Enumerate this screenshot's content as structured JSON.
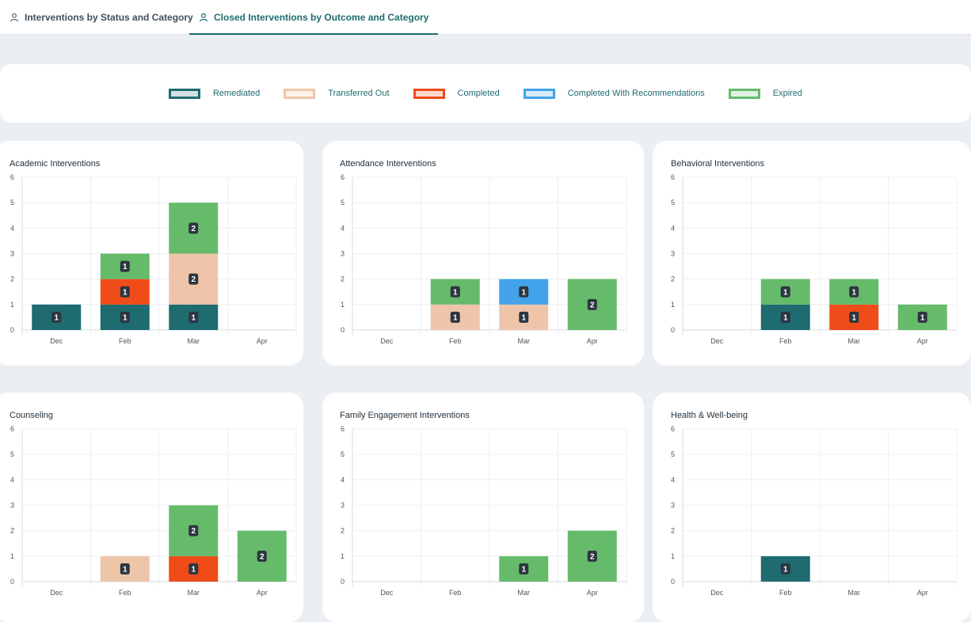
{
  "tabs": [
    {
      "label": "Interventions by Status and Category",
      "active": false
    },
    {
      "label": "Closed Interventions by Outcome and Category",
      "active": true
    }
  ],
  "legend": [
    {
      "label": "Remediated",
      "border": "#1e6b70",
      "fill": "#d2dfe1"
    },
    {
      "label": "Transferred Out",
      "border": "#efc5a9",
      "fill": "#fdf1ea"
    },
    {
      "label": "Completed",
      "border": "#f04c1a",
      "fill": "#fdd8ca"
    },
    {
      "label": "Completed With Recommendations",
      "border": "#42a3eb",
      "fill": "#d7ebfa"
    },
    {
      "label": "Expired",
      "border": "#66bb6a",
      "fill": "#e0f1e1"
    }
  ],
  "chart_data": [
    {
      "type": "bar",
      "stacked": true,
      "title": "Academic Interventions",
      "categories": [
        "Dec",
        "Feb",
        "Mar",
        "Apr"
      ],
      "yticks": [
        "0",
        "1",
        "2",
        "3",
        "4",
        "5",
        "6"
      ],
      "ylim": [
        0,
        6
      ],
      "series": [
        {
          "name": "Remediated",
          "color": "#1e6b70",
          "values": [
            1,
            1,
            1,
            0
          ]
        },
        {
          "name": "Transferred Out",
          "color": "#efc5a9",
          "values": [
            0,
            0,
            2,
            0
          ]
        },
        {
          "name": "Completed",
          "color": "#f04c1a",
          "values": [
            0,
            1,
            0,
            0
          ]
        },
        {
          "name": "Completed With Recommendations",
          "color": "#42a3eb",
          "values": [
            0,
            0,
            0,
            0
          ]
        },
        {
          "name": "Expired",
          "color": "#66bb6a",
          "values": [
            0,
            1,
            2,
            0
          ]
        }
      ]
    },
    {
      "type": "bar",
      "stacked": true,
      "title": "Attendance Interventions",
      "categories": [
        "Dec",
        "Feb",
        "Mar",
        "Apr"
      ],
      "yticks": [
        "0",
        "1",
        "2",
        "3",
        "4",
        "5",
        "6"
      ],
      "ylim": [
        0,
        6
      ],
      "series": [
        {
          "name": "Remediated",
          "color": "#1e6b70",
          "values": [
            0,
            0,
            0,
            0
          ]
        },
        {
          "name": "Transferred Out",
          "color": "#efc5a9",
          "values": [
            0,
            1,
            1,
            0
          ]
        },
        {
          "name": "Completed",
          "color": "#f04c1a",
          "values": [
            0,
            0,
            0,
            0
          ]
        },
        {
          "name": "Completed With Recommendations",
          "color": "#42a3eb",
          "values": [
            0,
            0,
            1,
            0
          ]
        },
        {
          "name": "Expired",
          "color": "#66bb6a",
          "values": [
            0,
            1,
            0,
            2
          ]
        }
      ]
    },
    {
      "type": "bar",
      "stacked": true,
      "title": "Behavioral Interventions",
      "categories": [
        "Dec",
        "Feb",
        "Mar",
        "Apr"
      ],
      "yticks": [
        "0",
        "1",
        "2",
        "3",
        "4",
        "5",
        "6"
      ],
      "ylim": [
        0,
        6
      ],
      "series": [
        {
          "name": "Remediated",
          "color": "#1e6b70",
          "values": [
            0,
            1,
            0,
            0
          ]
        },
        {
          "name": "Transferred Out",
          "color": "#efc5a9",
          "values": [
            0,
            0,
            0,
            0
          ]
        },
        {
          "name": "Completed",
          "color": "#f04c1a",
          "values": [
            0,
            0,
            1,
            0
          ]
        },
        {
          "name": "Completed With Recommendations",
          "color": "#42a3eb",
          "values": [
            0,
            0,
            0,
            0
          ]
        },
        {
          "name": "Expired",
          "color": "#66bb6a",
          "values": [
            0,
            1,
            1,
            1
          ]
        }
      ]
    },
    {
      "type": "bar",
      "stacked": true,
      "title": "Counseling",
      "categories": [
        "Dec",
        "Feb",
        "Mar",
        "Apr"
      ],
      "yticks": [
        "0",
        "1",
        "2",
        "3",
        "4",
        "5",
        "6"
      ],
      "ylim": [
        0,
        6
      ],
      "series": [
        {
          "name": "Remediated",
          "color": "#1e6b70",
          "values": [
            0,
            0,
            0,
            0
          ]
        },
        {
          "name": "Transferred Out",
          "color": "#efc5a9",
          "values": [
            0,
            1,
            0,
            0
          ]
        },
        {
          "name": "Completed",
          "color": "#f04c1a",
          "values": [
            0,
            0,
            1,
            0
          ]
        },
        {
          "name": "Completed With Recommendations",
          "color": "#42a3eb",
          "values": [
            0,
            0,
            0,
            0
          ]
        },
        {
          "name": "Expired",
          "color": "#66bb6a",
          "values": [
            0,
            0,
            2,
            2
          ]
        }
      ]
    },
    {
      "type": "bar",
      "stacked": true,
      "title": "Family Engagement Interventions",
      "categories": [
        "Dec",
        "Feb",
        "Mar",
        "Apr"
      ],
      "yticks": [
        "0",
        "1",
        "2",
        "3",
        "4",
        "5",
        "6"
      ],
      "ylim": [
        0,
        6
      ],
      "series": [
        {
          "name": "Remediated",
          "color": "#1e6b70",
          "values": [
            0,
            0,
            0,
            0
          ]
        },
        {
          "name": "Transferred Out",
          "color": "#efc5a9",
          "values": [
            0,
            0,
            0,
            0
          ]
        },
        {
          "name": "Completed",
          "color": "#f04c1a",
          "values": [
            0,
            0,
            0,
            0
          ]
        },
        {
          "name": "Completed With Recommendations",
          "color": "#42a3eb",
          "values": [
            0,
            0,
            0,
            0
          ]
        },
        {
          "name": "Expired",
          "color": "#66bb6a",
          "values": [
            0,
            0,
            1,
            2
          ]
        }
      ]
    },
    {
      "type": "bar",
      "stacked": true,
      "title": "Health & Well-being",
      "categories": [
        "Dec",
        "Feb",
        "Mar",
        "Apr"
      ],
      "yticks": [
        "0",
        "1",
        "2",
        "3",
        "4",
        "5",
        "6"
      ],
      "ylim": [
        0,
        6
      ],
      "series": [
        {
          "name": "Remediated",
          "color": "#1e6b70",
          "values": [
            0,
            1,
            0,
            0
          ]
        },
        {
          "name": "Transferred Out",
          "color": "#efc5a9",
          "values": [
            0,
            0,
            0,
            0
          ]
        },
        {
          "name": "Completed",
          "color": "#f04c1a",
          "values": [
            0,
            0,
            0,
            0
          ]
        },
        {
          "name": "Completed With Recommendations",
          "color": "#42a3eb",
          "values": [
            0,
            0,
            0,
            0
          ]
        },
        {
          "name": "Expired",
          "color": "#66bb6a",
          "values": [
            0,
            0,
            0,
            0
          ]
        }
      ]
    }
  ]
}
